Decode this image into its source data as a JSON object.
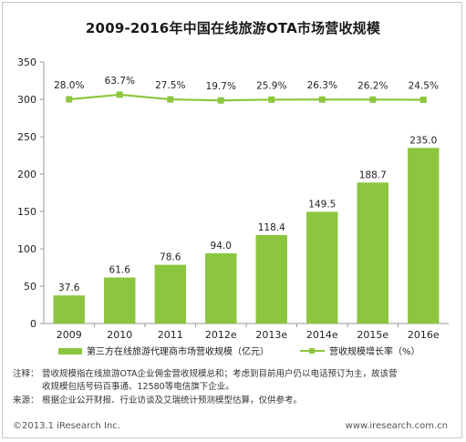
{
  "chart_data": {
    "type": "bar",
    "title": "2009-2016年中国在线旅游OTA市场营收规模",
    "categories": [
      "2009",
      "2010",
      "2011",
      "2012e",
      "2013e",
      "2014e",
      "2015e",
      "2016e"
    ],
    "series": [
      {
        "name": "第三方在线旅游代理商市场营收规模（亿元）",
        "type": "bar",
        "color": "#8cc63e",
        "values": [
          37.6,
          61.6,
          78.6,
          94.0,
          118.4,
          149.5,
          188.7,
          235.0
        ],
        "labels": [
          "37.6",
          "61.6",
          "78.6",
          "94.0",
          "118.4",
          "149.5",
          "188.7",
          "235.0"
        ]
      },
      {
        "name": "营收规模增长率（%）",
        "type": "line",
        "color": "#8cc63e",
        "values": [
          28.0,
          63.7,
          27.5,
          19.7,
          25.9,
          26.3,
          26.2,
          24.5
        ],
        "labels": [
          "28.0%",
          "63.7%",
          "27.5%",
          "19.7%",
          "25.9%",
          "26.3%",
          "26.2%",
          "24.5%"
        ]
      }
    ],
    "yticks": [
      "0",
      "50",
      "100",
      "150",
      "200",
      "250",
      "300",
      "350"
    ],
    "ylim": [
      0,
      350
    ],
    "grid": false,
    "legend": "bottom"
  },
  "notes": {
    "note_label": "注释：",
    "note_line1": "营收规模指在线旅游OTA企业佣金营收规模总和；考虑到目前用户仍以电话预订为主，故该营",
    "note_line2": "收规模包括号码百事通、12580等电信旗下企业。",
    "source_label": "来源：",
    "source_text": "根据企业公开财报、行业访谈及艾瑞统计预测模型估算，仅供参考。"
  },
  "footer": {
    "copyright": "©2013.1 iResearch Inc.",
    "website": "www.iresearch.com.cn"
  }
}
